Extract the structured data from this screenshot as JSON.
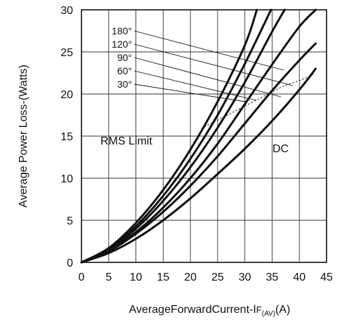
{
  "chart_data": {
    "type": "line",
    "title": "",
    "xlabel": {
      "main": "AverageForwardCurrent-I",
      "subscript_prefix": "F",
      "subscript": "(AV)",
      "unit": "(A)"
    },
    "ylabel": "Average Power Loss-(Watts)",
    "xlim": [
      0,
      45
    ],
    "ylim": [
      0,
      30
    ],
    "xticks": [
      0,
      5,
      10,
      15,
      20,
      25,
      30,
      35,
      40,
      45
    ],
    "yticks": [
      0,
      5,
      10,
      15,
      20,
      25,
      30
    ],
    "grid": true,
    "series": [
      {
        "name": "180°",
        "x": [
          0,
          5,
          10,
          15,
          20,
          25,
          30,
          32.2
        ],
        "y": [
          0,
          1.7,
          4.7,
          8.6,
          13.4,
          19.1,
          25.8,
          30
        ]
      },
      {
        "name": "120°",
        "x": [
          0,
          5,
          10,
          15,
          20,
          25,
          30,
          34.8
        ],
        "y": [
          0,
          1.6,
          4.3,
          7.9,
          12.3,
          17.5,
          23.6,
          30
        ]
      },
      {
        "name": "90°",
        "x": [
          0,
          5,
          10,
          15,
          20,
          25,
          30,
          35,
          37.3
        ],
        "y": [
          0,
          1.5,
          4.0,
          7.3,
          11.3,
          16.0,
          21.4,
          27.4,
          30
        ]
      },
      {
        "name": "60°",
        "x": [
          0,
          5,
          10,
          15,
          20,
          25,
          30,
          35,
          40,
          43
        ],
        "y": [
          0,
          1.4,
          3.6,
          6.5,
          10.0,
          14.1,
          18.8,
          23.5,
          28.0,
          30
        ]
      },
      {
        "name": "30°",
        "x": [
          0,
          5,
          10,
          15,
          20,
          25,
          30,
          35,
          40,
          43
        ],
        "y": [
          0,
          1.3,
          3.4,
          6.0,
          9.1,
          12.6,
          16.5,
          20.4,
          24.0,
          26.0
        ]
      },
      {
        "name": "DC",
        "x": [
          0,
          5,
          10,
          15,
          20,
          25,
          30,
          35,
          40,
          43
        ],
        "y": [
          0,
          1.1,
          2.8,
          5.0,
          7.6,
          10.5,
          13.5,
          16.8,
          20.5,
          23.0
        ]
      }
    ],
    "rms_limit": {
      "label": "RMS Limit",
      "x": [
        22,
        25,
        28,
        31,
        34,
        37,
        40,
        42.5
      ],
      "y": [
        15.9,
        16.9,
        17.9,
        18.9,
        19.9,
        20.9,
        21.6,
        22.3
      ]
    },
    "annotations": {
      "dc_label": "DC"
    }
  }
}
